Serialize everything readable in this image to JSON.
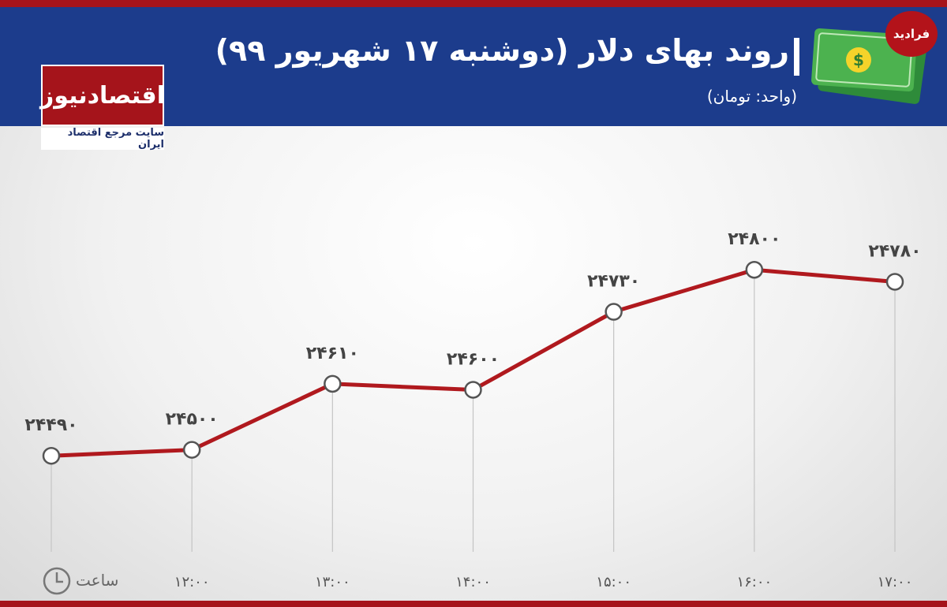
{
  "watermark": "فرادید",
  "logo": {
    "name": "اقتصادنیوز",
    "tagline": "سایت مرجع اقتصاد ایران"
  },
  "chart_data": {
    "type": "line",
    "title": "روند بهای دلار (دوشنبه ۱۷ شهریور ۹۹)",
    "subtitle": "(واحد: تومان)",
    "x_label": "ساعت",
    "categories": [
      null,
      "۱۲:۰۰",
      "۱۳:۰۰",
      "۱۴:۰۰",
      "۱۵:۰۰",
      "۱۶:۰۰",
      "۱۷:۰۰"
    ],
    "values": [
      24490,
      24500,
      24610,
      24600,
      24730,
      24800,
      24780
    ],
    "value_labels": [
      "۲۴۴۹۰",
      "۲۴۵۰۰",
      "۲۴۶۱۰",
      "۲۴۶۰۰",
      "۲۴۷۳۰",
      "۲۴۸۰۰",
      "۲۴۷۸۰"
    ],
    "color": "#b0191e",
    "ylim": [
      24330,
      25000
    ]
  }
}
